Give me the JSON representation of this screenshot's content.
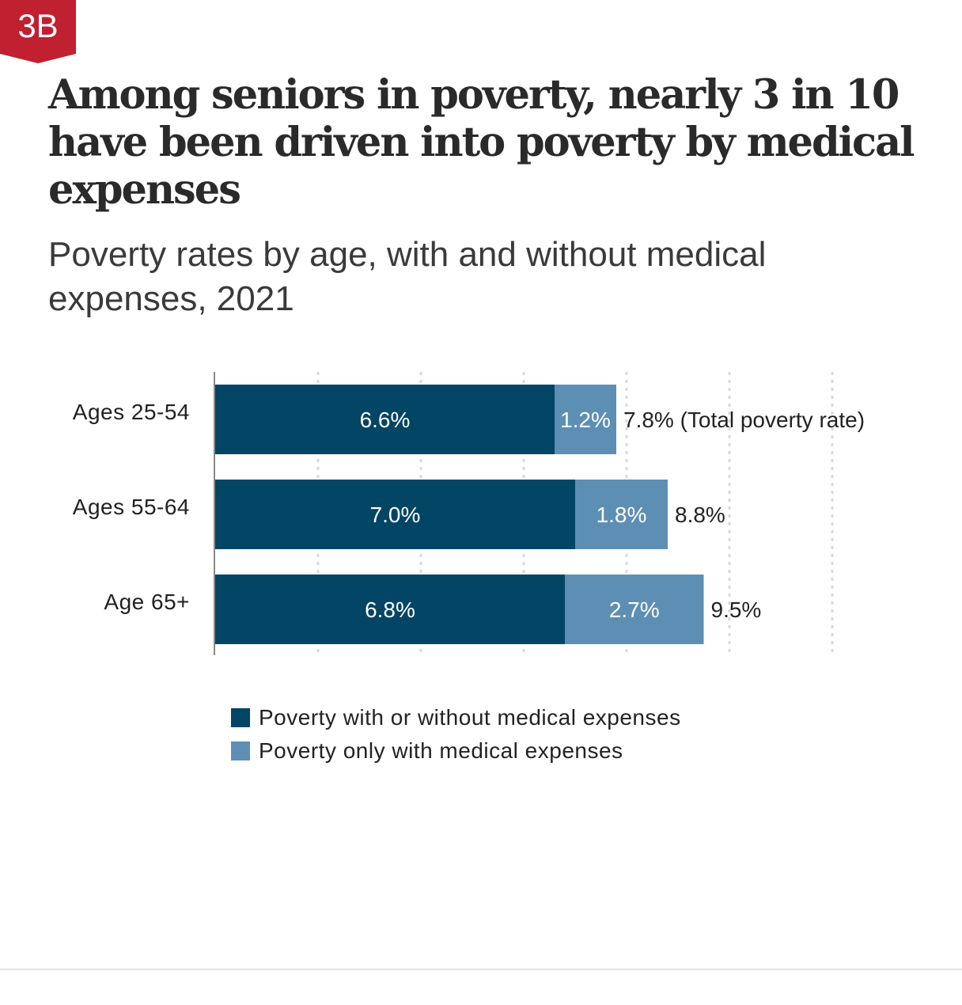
{
  "badge": {
    "label": "3B",
    "color": "#c0202f"
  },
  "title": "Among seniors in poverty, nearly 3 in 10 have been driven into poverty by medical expenses",
  "subtitle": "Poverty rates by age, with and without medical expenses, 2021",
  "colors": {
    "dark": "#024565",
    "light": "#5d8fb4",
    "grid": "#d9d9d9",
    "axis": "#8a8a8a"
  },
  "legend": [
    {
      "label": "Poverty with or without medical expenses",
      "color": "#024565"
    },
    {
      "label": "Poverty only with medical expenses",
      "color": "#5d8fb4"
    }
  ],
  "chart_data": {
    "type": "bar",
    "orientation": "horizontal",
    "stacked": true,
    "categories": [
      "Ages 25-54",
      "Ages 55-64",
      "Age 65+"
    ],
    "series": [
      {
        "name": "Poverty with or without medical expenses",
        "values": [
          6.6,
          7.0,
          6.8
        ],
        "labels": [
          "6.6%",
          "7.0%",
          "6.8%"
        ]
      },
      {
        "name": "Poverty only with medical expenses",
        "values": [
          1.2,
          1.8,
          2.7
        ],
        "labels": [
          "1.2%",
          "1.8%",
          "2.7%"
        ]
      }
    ],
    "totals": [
      7.8,
      8.8,
      9.5
    ],
    "total_labels": [
      "7.8% (Total poverty rate)",
      "8.8%",
      "9.5%"
    ],
    "xlim": [
      0,
      12
    ],
    "grid_interval": 2,
    "grid": true,
    "legend_position": "bottom"
  }
}
